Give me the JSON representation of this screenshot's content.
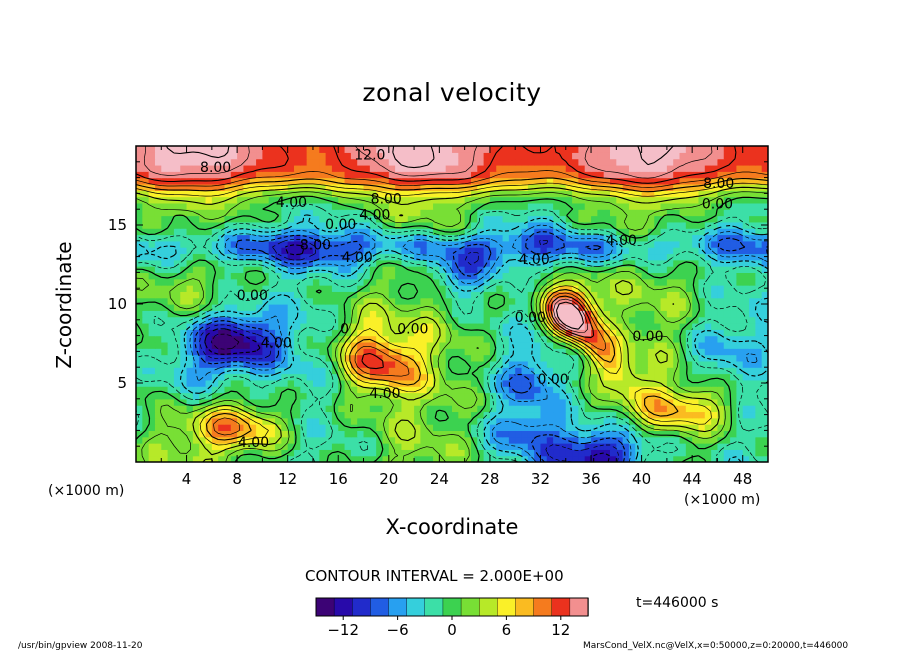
{
  "chart_data": {
    "type": "heatmap",
    "title": "zonal velocity",
    "xlabel": "X-coordinate",
    "ylabel": "Z-coordinate",
    "x_unit": "(×1000 m)",
    "y_unit": "(×1000 m)",
    "xlim": [
      0,
      50
    ],
    "ylim": [
      0,
      20
    ],
    "x_ticks": [
      4,
      8,
      12,
      16,
      20,
      24,
      28,
      32,
      36,
      40,
      44,
      48
    ],
    "y_ticks": [
      5,
      10,
      15
    ],
    "contour_interval": "CONTOUR INTERVAL = 2.000E+00",
    "colorbar_ticks": [
      -12,
      -6,
      0,
      6,
      12
    ],
    "colorbar_range": [
      -15,
      15
    ],
    "time": "t=446000 s",
    "contour_labels": [
      {
        "text": "12.0",
        "x": 18.5,
        "z": 19.4
      },
      {
        "text": "8.00",
        "x": 6.3,
        "z": 18.6
      },
      {
        "text": "8.00",
        "x": 19.8,
        "z": 16.6
      },
      {
        "text": "8.00",
        "x": 46.1,
        "z": 17.6
      },
      {
        "text": "4.00",
        "x": 12.3,
        "z": 16.4
      },
      {
        "text": "4.00",
        "x": 18.9,
        "z": 15.6
      },
      {
        "text": "0.00",
        "x": 16.2,
        "z": 15.0
      },
      {
        "text": "0.00",
        "x": 46.0,
        "z": 16.3
      },
      {
        "text": "4.00",
        "x": 38.4,
        "z": 14.0
      },
      {
        "text": "8.00",
        "x": 14.2,
        "z": 13.7
      },
      {
        "text": "4.00",
        "x": 17.5,
        "z": 12.9
      },
      {
        "text": "4.00",
        "x": 31.5,
        "z": 12.8
      },
      {
        "text": "0.00",
        "x": 9.2,
        "z": 10.5
      },
      {
        "text": "0",
        "x": 16.5,
        "z": 8.4
      },
      {
        "text": "0.00",
        "x": 21.9,
        "z": 8.4
      },
      {
        "text": "0.00",
        "x": 31.2,
        "z": 9.1
      },
      {
        "text": "0.00",
        "x": 40.5,
        "z": 7.9
      },
      {
        "text": "4.00",
        "x": 11.1,
        "z": 7.5
      },
      {
        "text": "0.00",
        "x": 33.0,
        "z": 5.2
      },
      {
        "text": "4.00",
        "x": 19.7,
        "z": 4.3
      },
      {
        "text": "4.00",
        "x": 9.3,
        "z": 1.2
      }
    ],
    "features": [
      {
        "kind": "jet",
        "x": [
          0,
          50
        ],
        "z": [
          17,
          20
        ],
        "value": 14
      },
      {
        "kind": "min",
        "x": 7.5,
        "z": 7.6,
        "value": -14
      },
      {
        "kind": "min",
        "x": 25.5,
        "z": 11.8,
        "value": -9
      },
      {
        "kind": "min",
        "x": 37,
        "z": 0.8,
        "value": -12
      },
      {
        "kind": "max",
        "x": 34.5,
        "z": 9.6,
        "value": 16
      },
      {
        "kind": "max",
        "x": 19.5,
        "z": 6.2,
        "value": 10
      },
      {
        "kind": "max",
        "x": 8,
        "z": 2.0,
        "value": 10
      }
    ]
  },
  "footer": {
    "left": "/usr/bin/gpview   2008-11-20",
    "right": "MarsCond_VelX.nc@VelX,x=0:50000,z=0:20000,t=446000"
  },
  "colors": {
    "frame": "#000000",
    "background": "#ffffff"
  }
}
